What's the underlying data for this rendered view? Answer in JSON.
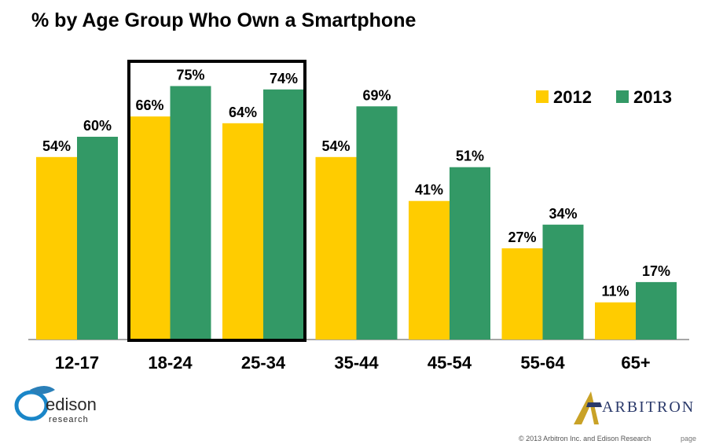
{
  "chart_data": {
    "type": "bar",
    "title": "% by Age Group Who Own a Smartphone",
    "categories": [
      "12-17",
      "18-24",
      "25-34",
      "35-44",
      "45-54",
      "55-64",
      "65+"
    ],
    "series": [
      {
        "name": "2012",
        "values": [
          54,
          66,
          64,
          54,
          41,
          27,
          11
        ],
        "color": "#FFCC00"
      },
      {
        "name": "2013",
        "values": [
          60,
          75,
          74,
          69,
          51,
          34,
          17
        ],
        "color": "#339966"
      }
    ],
    "value_suffix": "%",
    "ylim": [
      0,
      100
    ],
    "legend_position": "top-right",
    "highlighted_categories": [
      "18-24",
      "25-34"
    ],
    "xlabel": "",
    "ylabel": ""
  },
  "logos": {
    "edison": {
      "name": "edison",
      "sub": "research"
    },
    "arbitron": {
      "name": "ARBITRON"
    }
  },
  "footer": {
    "copyright": "© 2013 Arbitron Inc. and Edison Research",
    "page": "page"
  },
  "colors": {
    "accent_2012": "#FFCC00",
    "accent_2013": "#339966",
    "highlight_box": "#000000"
  }
}
